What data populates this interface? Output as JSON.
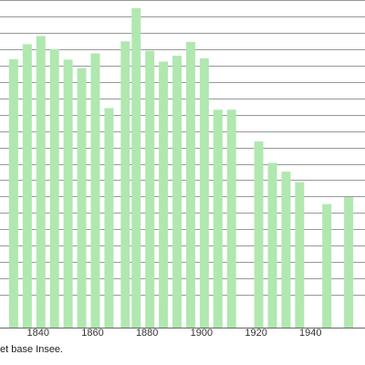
{
  "chart_data": {
    "type": "bar",
    "title": "",
    "xlabel": "",
    "ylabel": "",
    "x_ticks": [
      1840,
      1860,
      1880,
      1900,
      1920,
      1940
    ],
    "x_range": [
      1826,
      1960
    ],
    "y_range": [
      0,
      1000
    ],
    "grid": "horizontal",
    "legend": "none",
    "bar_color": "#b0e8b0",
    "grid_color": "#333333",
    "series": [
      {
        "x": [
          1831,
          1836,
          1841,
          1846,
          1851,
          1856,
          1861,
          1866,
          1872,
          1876,
          1881,
          1886,
          1891,
          1896,
          1901,
          1906,
          1911,
          1921,
          1926,
          1931,
          1936,
          1946,
          1954
        ],
        "values": [
          819,
          865,
          890,
          850,
          818,
          792,
          837,
          670,
          874,
          975,
          845,
          812,
          830,
          872,
          822,
          665,
          665,
          568,
          503,
          476,
          444,
          377,
          398
        ]
      }
    ]
  },
  "footer": {
    "source_text": "et base Insee."
  }
}
